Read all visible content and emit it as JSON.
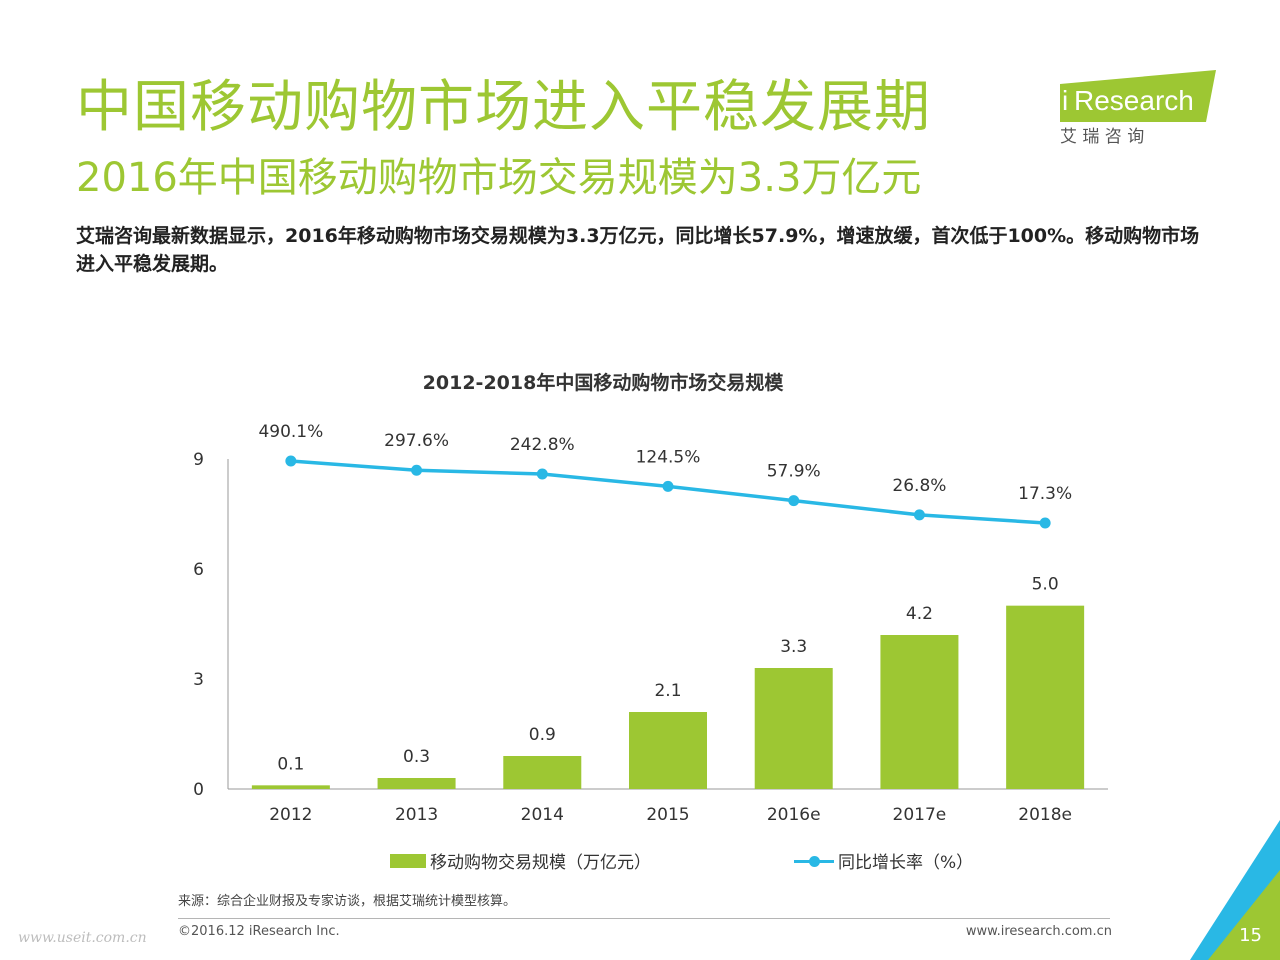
{
  "header": {
    "title": "中国移动购物市场进入平稳发展期",
    "subtitle": "2016年中国移动购物市场交易规模为3.3万亿元",
    "description": "艾瑞咨询最新数据显示，2016年移动购物市场交易规模为3.3万亿元，同比增长57.9%，增速放缓，首次低于100%。移动购物市场进入平稳发展期。"
  },
  "logo": {
    "brand_i": "i",
    "brand_rest": "Research",
    "sub": "艾 瑞 咨 询"
  },
  "chart_data": {
    "type": "bar",
    "title": "2012-2018年中国移动购物市场交易规模",
    "categories": [
      "2012",
      "2013",
      "2014",
      "2015",
      "2016e",
      "2017e",
      "2018e"
    ],
    "series": [
      {
        "name": "移动购物交易规模（万亿元）",
        "type": "bar",
        "values": [
          0.1,
          0.3,
          0.9,
          2.1,
          3.3,
          4.2,
          5.0
        ],
        "labels": [
          "0.1",
          "0.3",
          "0.9",
          "2.1",
          "3.3",
          "4.2",
          "5.0"
        ],
        "color": "#9dc733"
      },
      {
        "name": "同比增长率（%）",
        "type": "line",
        "values": [
          490.1,
          297.6,
          242.8,
          124.5,
          57.9,
          26.8,
          17.3
        ],
        "labels": [
          "490.1%",
          "297.6%",
          "242.8%",
          "124.5%",
          "57.9%",
          "26.8%",
          "17.3%"
        ],
        "color": "#29b8e5"
      }
    ],
    "ylim": [
      0,
      9
    ],
    "yticks": [
      0,
      3,
      6,
      9
    ],
    "grid": false,
    "legend": "bottom"
  },
  "footer": {
    "source": "来源：综合企业财报及专家访谈，根据艾瑞统计模型核算。",
    "copyright": "©2016.12 iResearch Inc.",
    "website": "www.iresearch.com.cn",
    "page": "15",
    "watermark": "www.useit.com.cn"
  }
}
